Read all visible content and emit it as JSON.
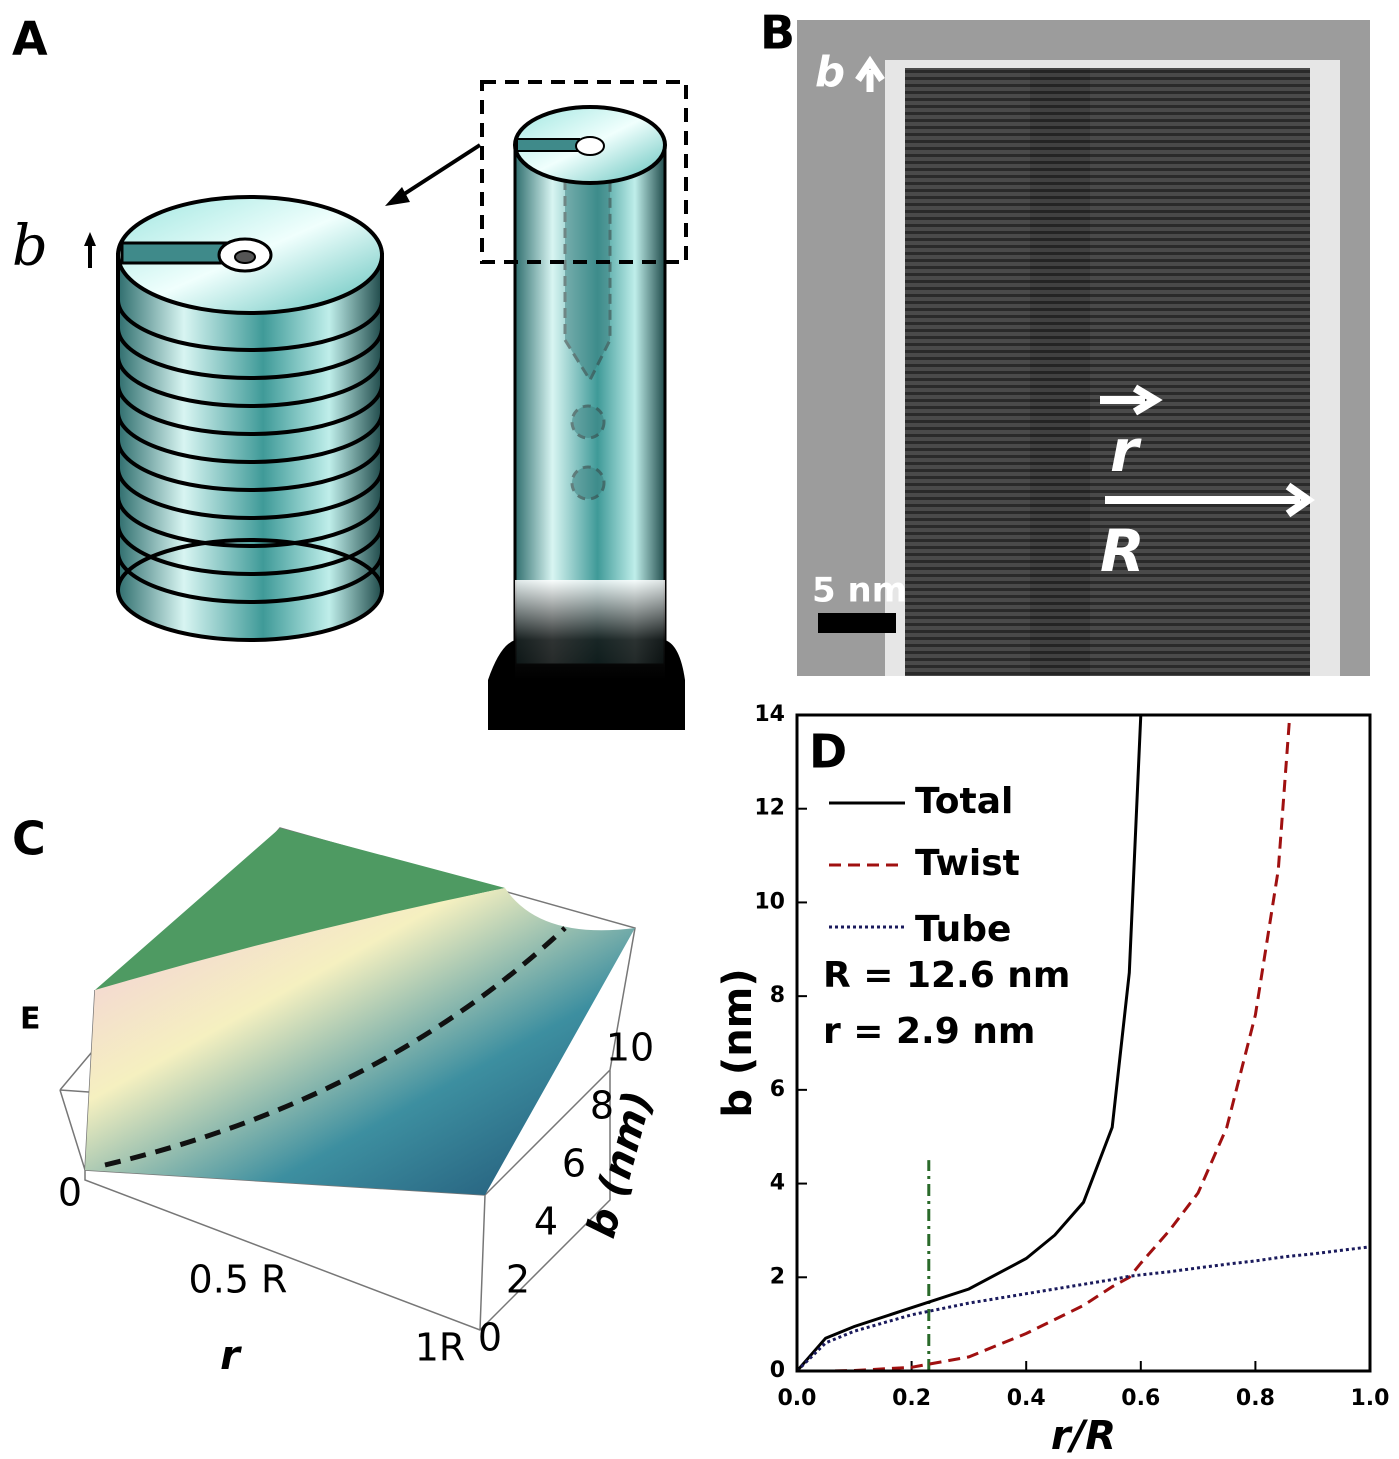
{
  "panels": {
    "a": {
      "label": "A",
      "b_label": "b"
    },
    "b": {
      "label": "B",
      "b_label": "b",
      "r_label": "r",
      "R_label": "R",
      "scale_bar": "5 nm"
    },
    "c": {
      "label": "C",
      "e_label": "E",
      "r_ticks": [
        "0",
        "0.5 R",
        "1R"
      ],
      "r_label": "r",
      "b_ticks": [
        0,
        2,
        4,
        6,
        8,
        10
      ],
      "b_label": "b (nm)"
    }
  },
  "chart_data": {
    "type": "line",
    "panel_label": "D",
    "xlabel": "r/R",
    "ylabel": "b (nm)",
    "xlim": [
      0,
      1
    ],
    "ylim": [
      0,
      14
    ],
    "xticks": [
      {
        "value": 0,
        "label": "0.0"
      },
      {
        "value": 0.2,
        "label": "0.2"
      },
      {
        "value": 0.4,
        "label": "0.4"
      },
      {
        "value": 0.6,
        "label": "0.6"
      },
      {
        "value": 0.8,
        "label": "0.8"
      },
      {
        "value": 1,
        "label": "1.0"
      }
    ],
    "yticks": [
      0,
      2,
      4,
      6,
      8,
      10,
      12,
      14
    ],
    "grid": false,
    "legend": "upper left",
    "annotations": [
      "R = 12.6 nm",
      "r = 2.9 nm"
    ],
    "reference_line": {
      "x": 0.23,
      "y": 4.5,
      "color": "#2a6a2a"
    },
    "x": [
      0,
      0.05,
      0.1,
      0.2,
      0.3,
      0.4,
      0.45,
      0.5,
      0.55,
      0.58,
      0.6,
      0.65,
      0.7,
      0.75,
      0.8,
      0.84,
      0.86,
      0.9,
      1.0
    ],
    "series": [
      {
        "name": "Total",
        "color": "#000000",
        "dash": "solid",
        "values": [
          0,
          0.7,
          0.95,
          1.35,
          1.75,
          2.4,
          2.9,
          3.6,
          5.2,
          8.5,
          14,
          null,
          null,
          null,
          null,
          null,
          null,
          null,
          null
        ]
      },
      {
        "name": "Twist",
        "color": "#a01010",
        "dash": "dashed",
        "values": [
          0,
          0,
          0.01,
          0.08,
          0.3,
          0.8,
          1.1,
          1.4,
          1.8,
          2.0,
          2.3,
          3.0,
          3.8,
          5.2,
          7.6,
          10.7,
          14,
          null,
          null
        ]
      },
      {
        "name": "Tube",
        "color": "#1a1a5c",
        "dash": "dotted",
        "values": [
          0,
          0.6,
          0.85,
          1.2,
          1.45,
          1.65,
          1.75,
          1.85,
          1.95,
          2.02,
          2.05,
          2.12,
          2.2,
          2.28,
          2.35,
          2.42,
          2.45,
          2.5,
          2.65
        ]
      }
    ]
  }
}
